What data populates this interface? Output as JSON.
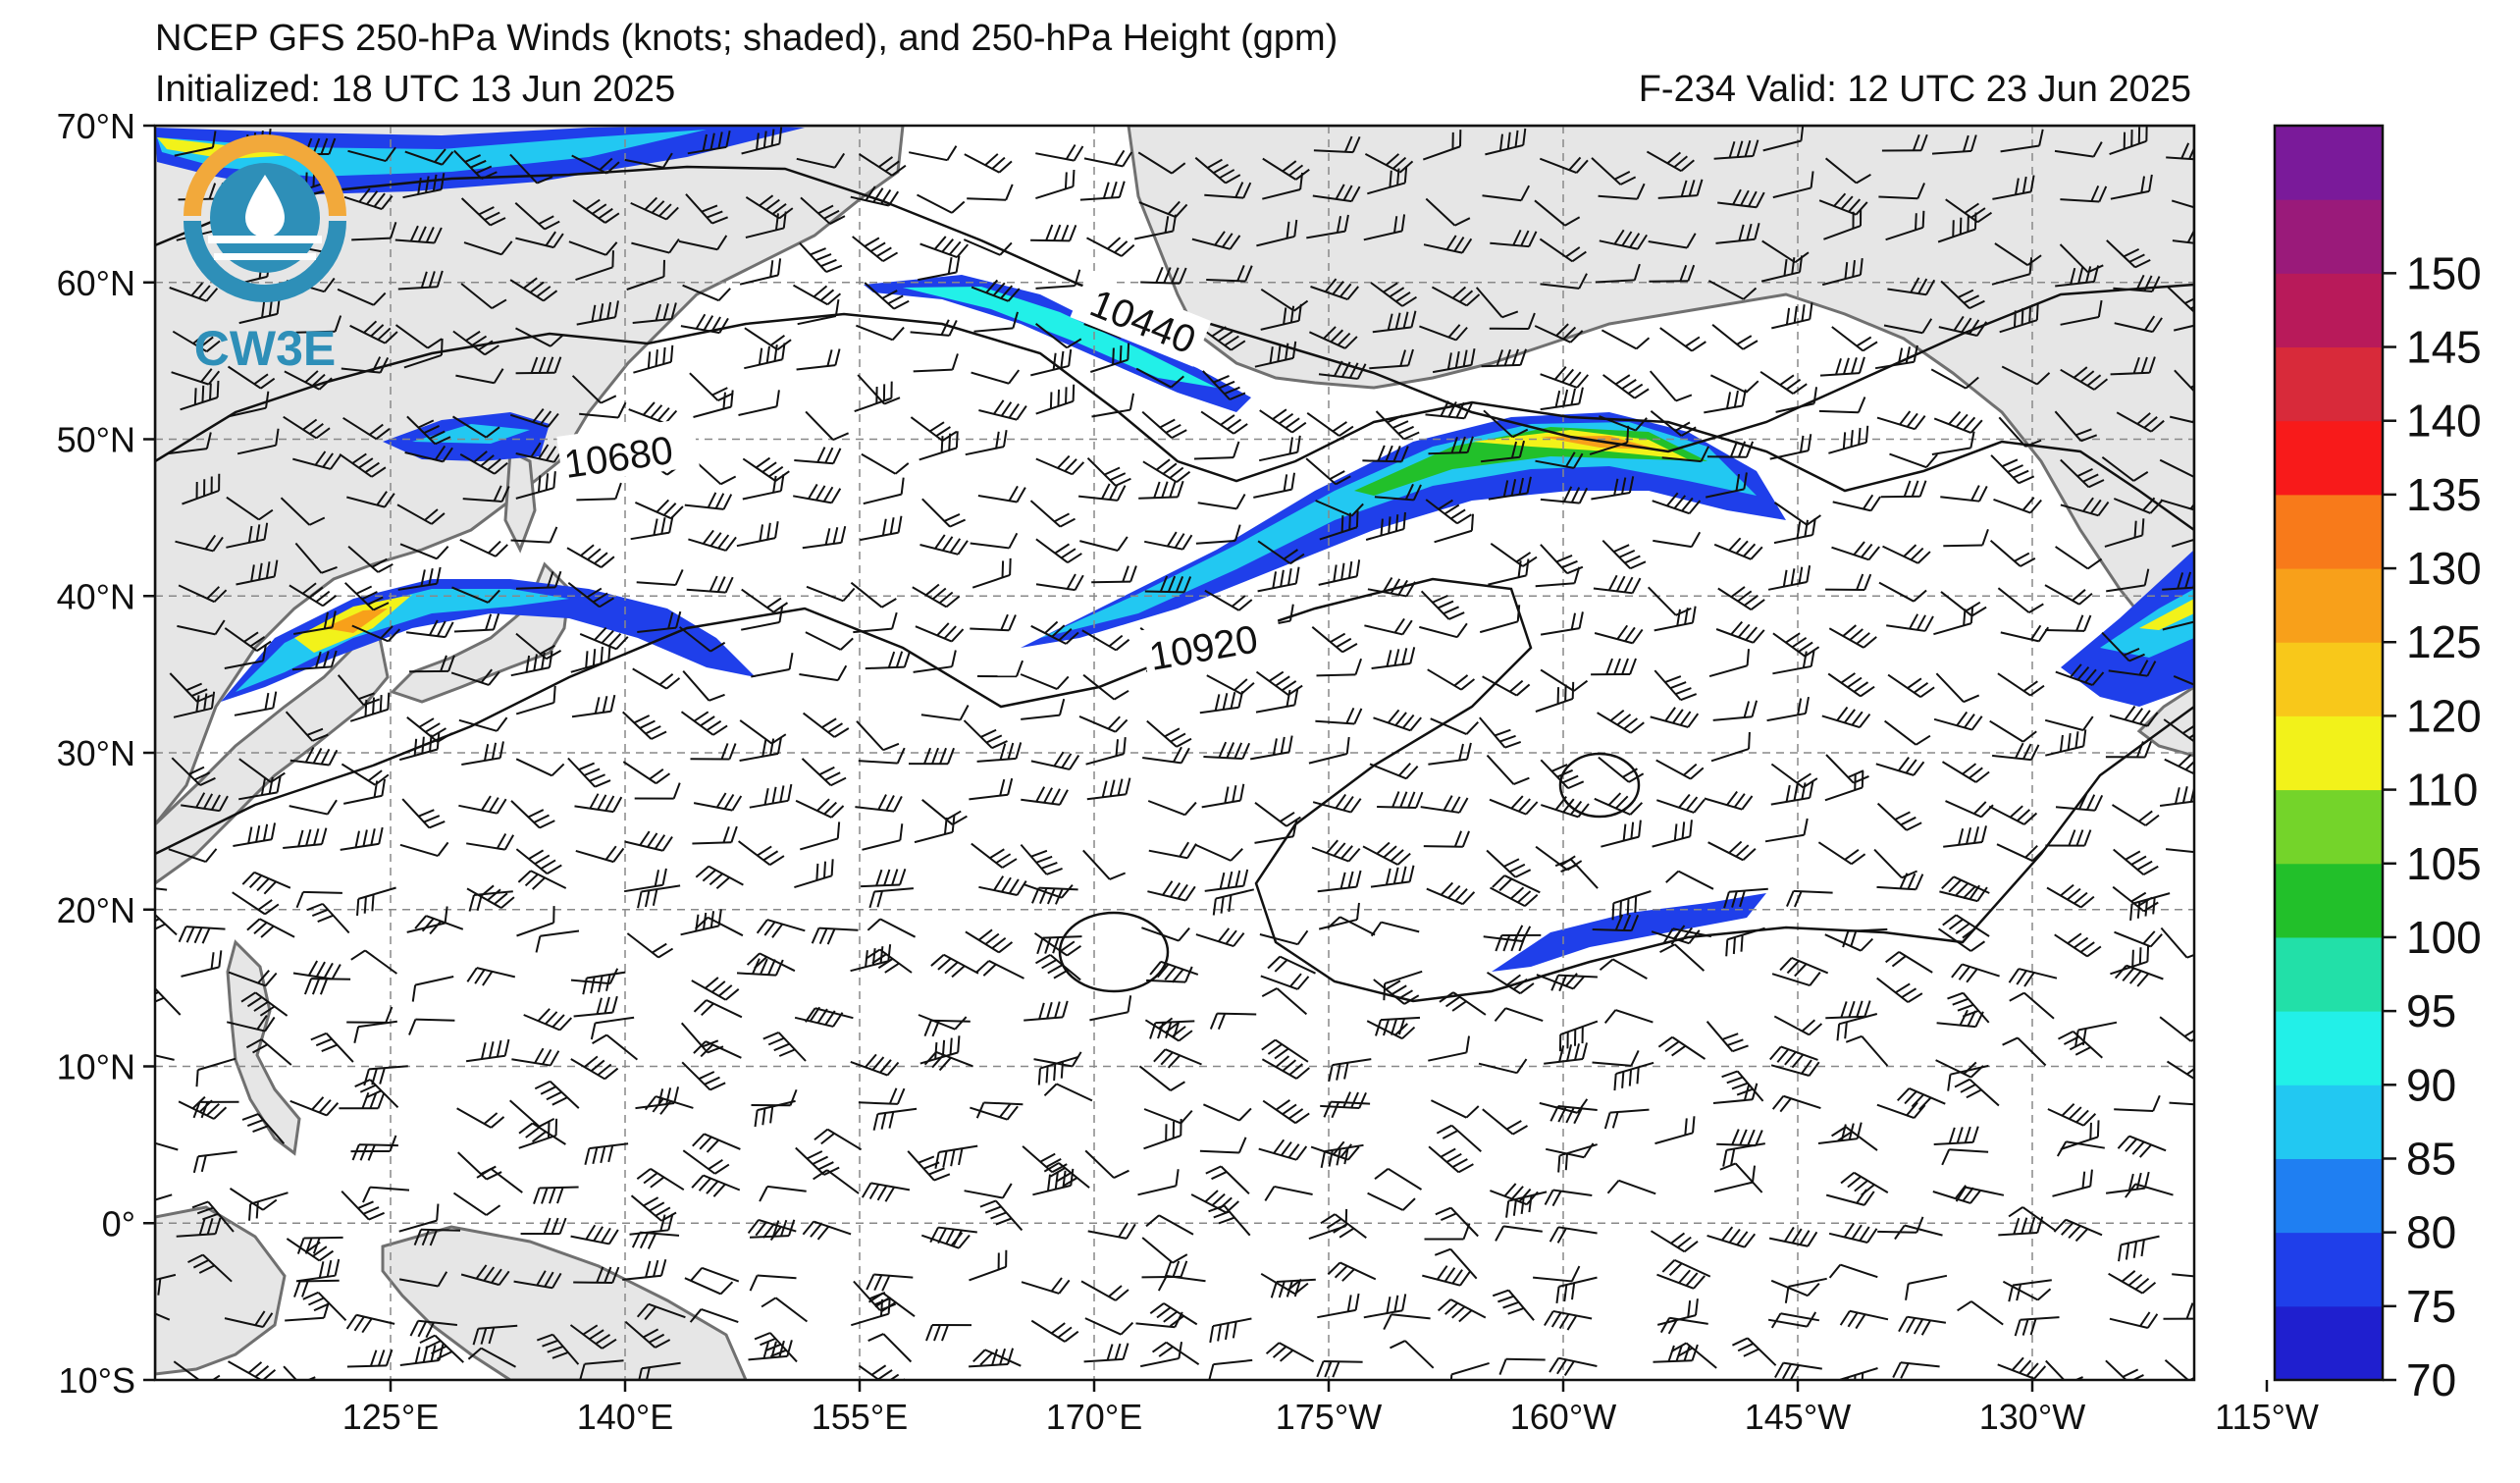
{
  "title": {
    "line1": "NCEP GFS 250-hPa Winds (knots; shaded), and 250-hPa Height (gpm)",
    "initialized": "Initialized: 18 UTC 13 Jun 2025",
    "valid": "F-234  Valid: 12 UTC 23 Jun 2025"
  },
  "logo": {
    "text": "CW3E",
    "color": "#2e8fb8",
    "ring_color": "#f2a93b"
  },
  "axes": {
    "lat_labels": [
      "70°N",
      "60°N",
      "50°N",
      "40°N",
      "30°N",
      "20°N",
      "10°N",
      "0°",
      "10°S"
    ],
    "lon_labels": [
      "125°E",
      "140°E",
      "155°E",
      "170°E",
      "175°W",
      "160°W",
      "145°W",
      "130°W",
      "115°W"
    ]
  },
  "contour_labels": [
    "10440",
    "10680",
    "10920"
  ],
  "colorbar": {
    "ticks": [
      "70",
      "75",
      "80",
      "85",
      "90",
      "95",
      "100",
      "105",
      "110",
      "120",
      "125",
      "130",
      "135",
      "140",
      "145",
      "150"
    ],
    "colors": [
      "#1f1fcf",
      "#1f3fea",
      "#1f7ff2",
      "#22c8f2",
      "#22f0e8",
      "#22e0a8",
      "#22c02a",
      "#74d42a",
      "#f2f21a",
      "#f8c81a",
      "#f8a01a",
      "#f87a1a",
      "#f81a1a",
      "#d82a3a",
      "#b81a5a",
      "#9a1a7a",
      "#7a1a9a"
    ]
  },
  "colors": {
    "land": "#e6e6e6",
    "coast": "#707070",
    "grid": "#888888"
  }
}
